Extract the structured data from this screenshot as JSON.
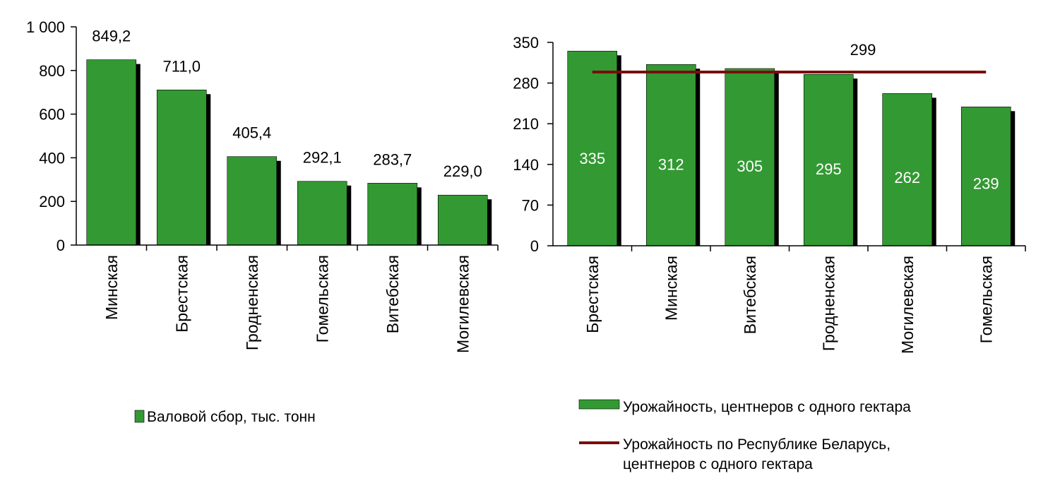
{
  "colors": {
    "bar": "#339933",
    "bar_stroke": "#000000",
    "shadow": "#000000",
    "average_line": "#7b0c0c",
    "axis": "#000000",
    "inner_label": "#ffffff"
  },
  "chart_data": [
    {
      "type": "bar",
      "categories": [
        "Минская",
        "Брестская",
        "Гродненская",
        "Гомельская",
        "Витебская",
        "Могилевская"
      ],
      "series": [
        {
          "name": "Валовой сбор, тыс. тонн",
          "values": [
            849.2,
            711.0,
            405.4,
            292.1,
            283.7,
            229.0
          ],
          "labels": [
            "849,2",
            "711,0",
            "405,4",
            "292,1",
            "283,7",
            "229,0"
          ]
        }
      ],
      "ylim": [
        0,
        1000
      ],
      "yticks": [
        0,
        200,
        400,
        600,
        800,
        1000
      ],
      "ytick_labels": [
        "0",
        "200",
        "400",
        "600",
        "800",
        "1 000"
      ],
      "grid": false,
      "legend_position": "bottom"
    },
    {
      "type": "bar",
      "categories": [
        "Брестская",
        "Минская",
        "Витебская",
        "Гродненская",
        "Могилевская",
        "Гомельская"
      ],
      "series": [
        {
          "name": "Урожайность, центнеров с одного гектара",
          "values": [
            335,
            312,
            305,
            295,
            262,
            239
          ],
          "labels": [
            "335",
            "312",
            "305",
            "295",
            "262",
            "239"
          ]
        },
        {
          "name": "Урожайность по Республике Беларусь, центнеров с одного гектара",
          "type": "line",
          "value": 299,
          "label": "299"
        }
      ],
      "ylim": [
        0,
        350
      ],
      "yticks": [
        0,
        70,
        140,
        210,
        280,
        350
      ],
      "ytick_labels": [
        "0",
        "70",
        "140",
        "210",
        "280",
        "350"
      ],
      "grid": false,
      "legend_position": "bottom"
    }
  ]
}
